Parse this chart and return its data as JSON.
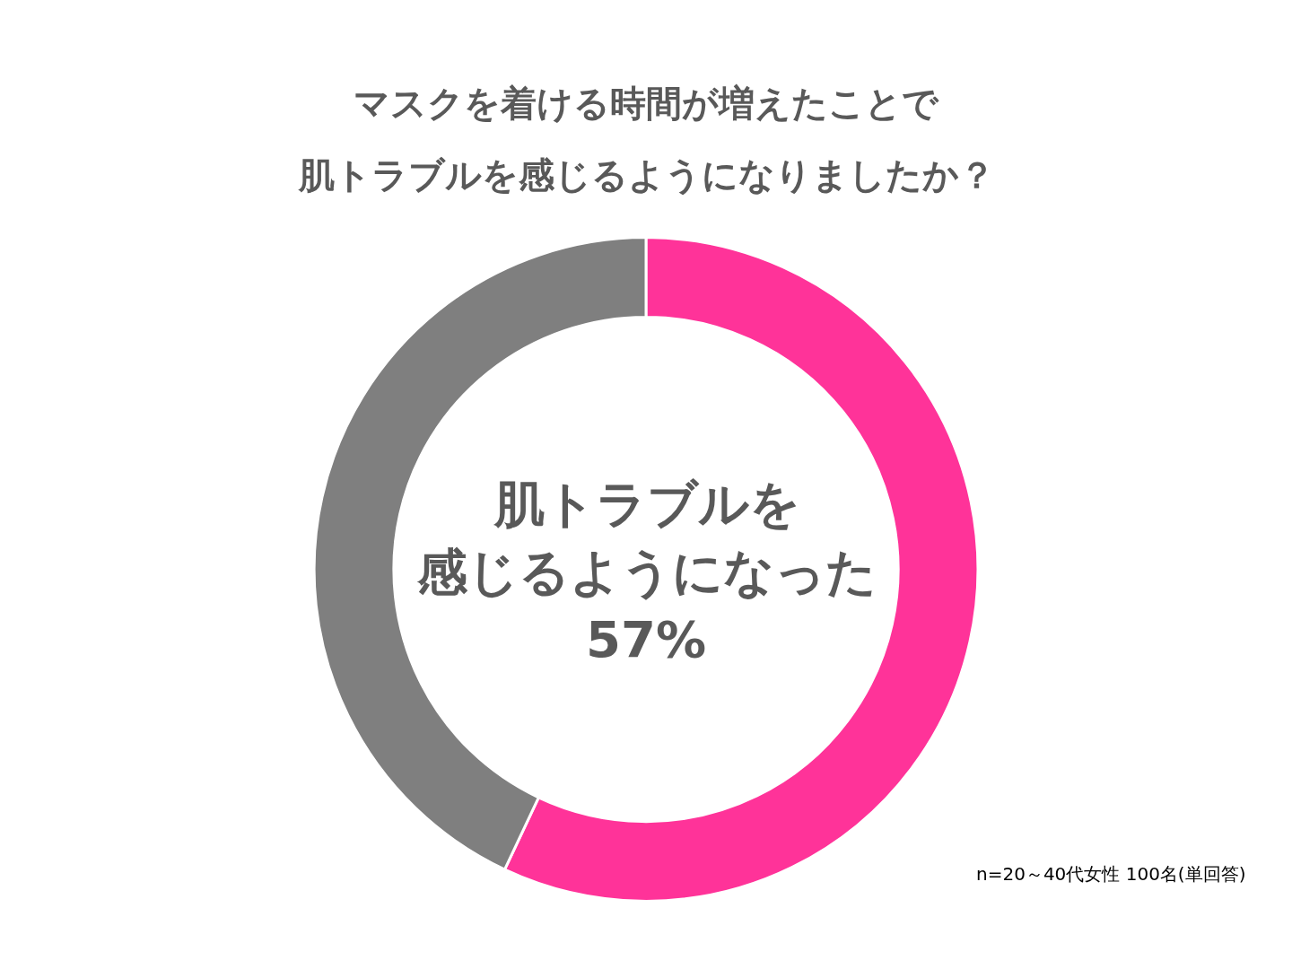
{
  "chart_data": {
    "type": "donut",
    "title": "マスクを着ける時間が増えたことで",
    "subtitle": "肌トラブルを感じるようになりましたか？",
    "categories": [
      null,
      null
    ],
    "values": [
      57,
      43
    ],
    "colors": [
      "#ff3399",
      "#7f7f7f"
    ],
    "legend": false,
    "annotations": [
      "肌トラブルを",
      "感じるようになった",
      "57%",
      "n=20～40代女性 100名(単回答)"
    ]
  }
}
